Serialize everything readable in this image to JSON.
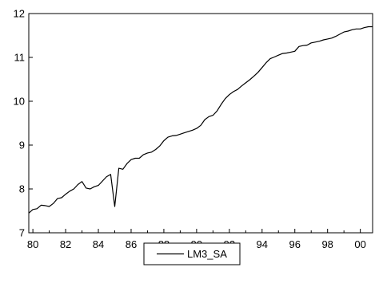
{
  "chart_data": {
    "type": "line",
    "title": "",
    "xlabel": "",
    "ylabel": "",
    "xlim": [
      1979.75,
      2000.75
    ],
    "ylim": [
      7,
      12
    ],
    "x_ticks": [
      1980,
      1982,
      1984,
      1986,
      1988,
      1990,
      1992,
      1994,
      1996,
      1998,
      2000
    ],
    "x_tick_labels": [
      "80",
      "82",
      "84",
      "86",
      "88",
      "90",
      "92",
      "94",
      "96",
      "98",
      "00"
    ],
    "y_ticks": [
      7,
      8,
      9,
      10,
      11,
      12
    ],
    "y_tick_labels": [
      "7",
      "8",
      "9",
      "10",
      "11",
      "12"
    ],
    "grid": false,
    "legend": {
      "placement": "bottom-center",
      "entries": [
        "LM3_SA"
      ]
    },
    "series": [
      {
        "name": "LM3_SA",
        "color": "#000000",
        "x": [
          1979.75,
          1980.0,
          1980.25,
          1980.5,
          1980.75,
          1981.0,
          1981.25,
          1981.5,
          1981.75,
          1982.0,
          1982.25,
          1982.5,
          1982.75,
          1983.0,
          1983.25,
          1983.5,
          1983.75,
          1984.0,
          1984.25,
          1984.5,
          1984.75,
          1985.0,
          1985.25,
          1985.5,
          1985.75,
          1986.0,
          1986.25,
          1986.5,
          1986.75,
          1987.0,
          1987.25,
          1987.5,
          1987.75,
          1988.0,
          1988.25,
          1988.5,
          1988.75,
          1989.0,
          1989.25,
          1989.5,
          1989.75,
          1990.0,
          1990.25,
          1990.5,
          1990.75,
          1991.0,
          1991.25,
          1991.5,
          1991.75,
          1992.0,
          1992.25,
          1992.5,
          1992.75,
          1993.0,
          1993.25,
          1993.5,
          1993.75,
          1994.0,
          1994.25,
          1994.5,
          1994.75,
          1995.0,
          1995.25,
          1995.5,
          1995.75,
          1996.0,
          1996.25,
          1996.5,
          1996.75,
          1997.0,
          1997.25,
          1997.5,
          1997.75,
          1998.0,
          1998.25,
          1998.5,
          1998.75,
          1999.0,
          1999.25,
          1999.5,
          1999.75,
          2000.0,
          2000.25,
          2000.5,
          2000.75
        ],
        "values": [
          7.45,
          7.53,
          7.55,
          7.63,
          7.62,
          7.6,
          7.67,
          7.78,
          7.8,
          7.88,
          7.95,
          8.0,
          8.1,
          8.17,
          8.02,
          8.0,
          8.05,
          8.08,
          8.18,
          8.28,
          8.33,
          7.6,
          8.47,
          8.45,
          8.58,
          8.67,
          8.7,
          8.7,
          8.78,
          8.82,
          8.84,
          8.9,
          8.98,
          9.1,
          9.18,
          9.21,
          9.22,
          9.25,
          9.28,
          9.31,
          9.34,
          9.38,
          9.45,
          9.58,
          9.65,
          9.68,
          9.78,
          9.93,
          10.06,
          10.15,
          10.22,
          10.27,
          10.35,
          10.42,
          10.49,
          10.57,
          10.66,
          10.77,
          10.88,
          10.97,
          11.01,
          11.05,
          11.09,
          11.1,
          11.12,
          11.14,
          11.25,
          11.27,
          11.28,
          11.33,
          11.35,
          11.37,
          11.4,
          11.42,
          11.44,
          11.48,
          11.53,
          11.58,
          11.6,
          11.63,
          11.65,
          11.65,
          11.68,
          11.7,
          11.7
        ]
      }
    ]
  }
}
